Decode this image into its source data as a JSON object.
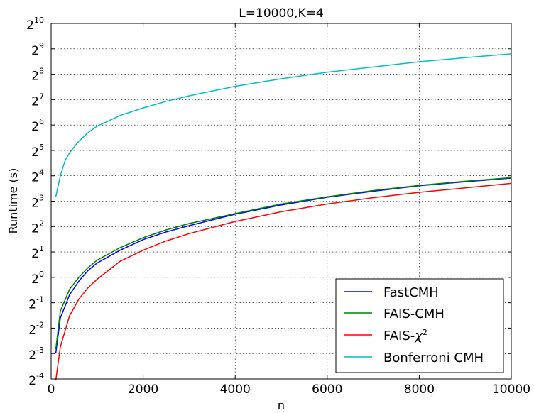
{
  "chart_data": {
    "type": "line",
    "title": "L=10000,K=4",
    "xlabel": "n",
    "ylabel": "Runtime (s)",
    "xlim": [
      0,
      10000
    ],
    "ylim_log2": [
      -4,
      10
    ],
    "y_scale": "log2",
    "grid": true,
    "legend_position": "lower-right",
    "x_ticks": [
      0,
      2000,
      4000,
      6000,
      8000,
      10000
    ],
    "x_tick_labels": [
      "0",
      "2000",
      "4000",
      "6000",
      "8000",
      "10000"
    ],
    "y_ticks_exponents": [
      -4,
      -3,
      -2,
      -1,
      0,
      1,
      2,
      3,
      4,
      5,
      6,
      7,
      8,
      9,
      10
    ],
    "y_tick_base": "2",
    "y_tick_exponent_labels": [
      "-4",
      "-3",
      "-2",
      "-1",
      "0",
      "1",
      "2",
      "3",
      "4",
      "5",
      "6",
      "7",
      "8",
      "9",
      "10"
    ],
    "series": [
      {
        "name": "FastCMH",
        "color": "#0000ff",
        "x": [
          100,
          200,
          400,
          600,
          800,
          1000,
          1500,
          2000,
          2500,
          3000,
          4000,
          5000,
          6000,
          7000,
          8000,
          9000,
          10000
        ],
        "y": [
          0.125,
          0.33,
          0.62,
          0.9,
          1.2,
          1.48,
          2.1,
          2.8,
          3.45,
          4.1,
          5.6,
          7.2,
          8.9,
          10.5,
          12.2,
          13.6,
          15.0
        ]
      },
      {
        "name": "FAIS-CMH",
        "color": "#008000",
        "x": [
          100,
          200,
          400,
          600,
          800,
          1000,
          1500,
          2000,
          2500,
          3000,
          4000,
          5000,
          6000,
          7000,
          8000,
          9000,
          10000
        ],
        "y": [
          0.14,
          0.4,
          0.72,
          1.0,
          1.3,
          1.6,
          2.25,
          2.95,
          3.65,
          4.35,
          5.7,
          7.4,
          9.0,
          10.7,
          12.3,
          13.8,
          15.2
        ]
      },
      {
        "name": "FAIS-χ²",
        "color": "#ff0000",
        "x": [
          100,
          200,
          400,
          600,
          800,
          1000,
          1500,
          2000,
          2500,
          3000,
          4000,
          5000,
          6000,
          7000,
          8000,
          9000,
          10000
        ],
        "y": [
          0.06,
          0.15,
          0.35,
          0.55,
          0.75,
          0.95,
          1.55,
          2.1,
          2.7,
          3.3,
          4.6,
          6.0,
          7.4,
          8.8,
          10.2,
          11.5,
          13.0
        ]
      },
      {
        "name": "Bonferroni CMH",
        "color": "#00bfbf",
        "x": [
          100,
          200,
          300,
          400,
          600,
          800,
          1000,
          1500,
          2000,
          2500,
          3000,
          4000,
          5000,
          6000,
          7000,
          8000,
          9000,
          10000
        ],
        "y": [
          9.0,
          16.0,
          24.0,
          30.0,
          41.0,
          52.0,
          62.0,
          83.0,
          102.0,
          122.0,
          142.0,
          184.0,
          226.0,
          270.0,
          312.0,
          360.0,
          402.0,
          446.0
        ]
      }
    ],
    "legend_labels": {
      "fastcmh": "FastCMH",
      "faiscmh": "FAIS-CMH",
      "faischi_prefix": "FAIS-",
      "faischi_symbol": "χ",
      "faischi_sup": "2",
      "bonferroni": "Bonferroni CMH"
    }
  }
}
